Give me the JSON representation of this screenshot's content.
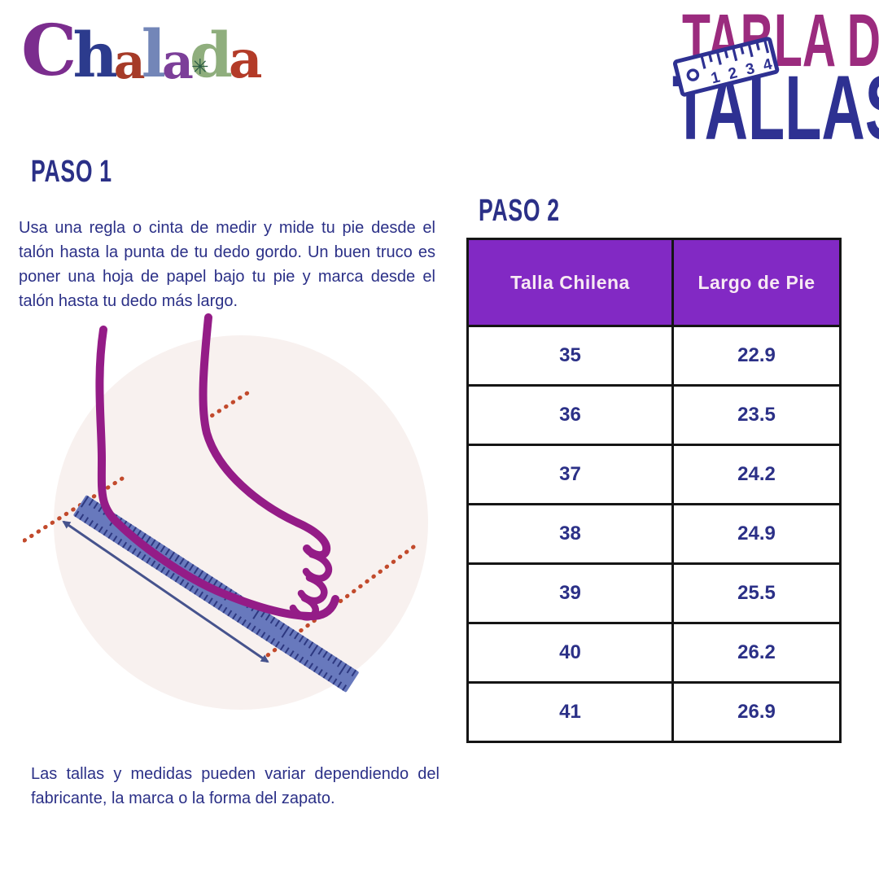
{
  "brand": {
    "name": "Chalada",
    "letters": [
      {
        "char": "C",
        "color": "#7b2d8e"
      },
      {
        "char": "h",
        "color": "#2c3b8d"
      },
      {
        "char": "a",
        "color": "#a63b28"
      },
      {
        "char": "l",
        "color": "#7386b8"
      },
      {
        "char": "a",
        "color": "#7c3f99"
      },
      {
        "char": "d",
        "color": "#8fae7d",
        "decoration": "mandala"
      },
      {
        "char": "a",
        "color": "#b33b28"
      }
    ]
  },
  "header_title": {
    "line1": "TABLA DE",
    "line2": "TALLAS",
    "line1_color": "#9b2b7e",
    "line2_color": "#2e3192",
    "ruler_icon_numbers": [
      "1",
      "2",
      "3",
      "4"
    ]
  },
  "text_color": "#2b3087",
  "step1": {
    "heading": "PASO 1",
    "body": "Usa una regla o cinta de medir y mide tu pie desde el talón hasta la punta de tu dedo gordo. Un buen truco es poner una hoja de papel bajo tu pie y marca desde el talón hasta tu dedo más largo."
  },
  "step2": {
    "heading": "PASO 2"
  },
  "size_table": {
    "headers": [
      "Talla Chilena",
      "Largo de Pie"
    ],
    "rows": [
      [
        "35",
        "22.9"
      ],
      [
        "36",
        "23.5"
      ],
      [
        "37",
        "24.2"
      ],
      [
        "38",
        "24.9"
      ],
      [
        "39",
        "25.5"
      ],
      [
        "40",
        "26.2"
      ],
      [
        "41",
        "26.9"
      ]
    ],
    "header_bg": "#8229c4",
    "header_text_color": "#f7e9f3",
    "cell_text_color": "#2b3087"
  },
  "footnote": "Las tallas y medidas pueden variar dependiendo del fabricante, la marca o la forma del zapato.",
  "illustration": {
    "bg_circle": "#f8f1ef",
    "foot": "#941c87",
    "ruler": "#6879bd",
    "ruler_ticks": "#2d3880",
    "guide_dots": "#c24a2c",
    "arrow": "#46538d"
  }
}
